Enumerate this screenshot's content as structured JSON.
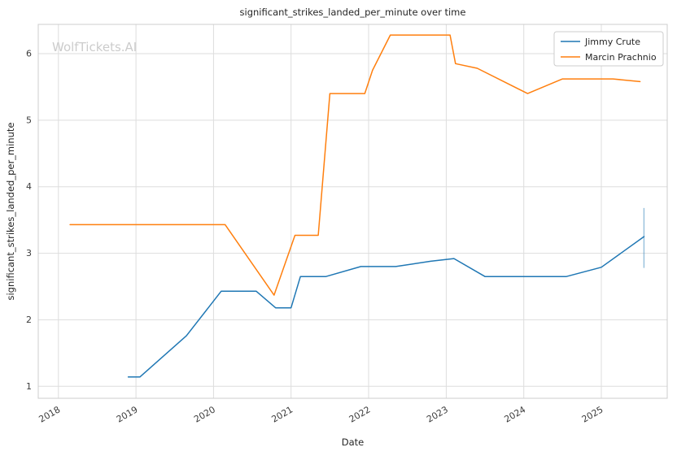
{
  "watermark": "WolfTickets.AI",
  "chart_data": {
    "type": "line",
    "title": "significant_strikes_landed_per_minute over time",
    "xlabel": "Date",
    "ylabel": "significant_strikes_landed_per_minute",
    "xlim": [
      2017.74,
      2025.85
    ],
    "ylim": [
      0.82,
      6.44
    ],
    "x_ticks": [
      2018,
      2019,
      2020,
      2021,
      2022,
      2023,
      2024,
      2025
    ],
    "y_ticks": [
      1,
      2,
      3,
      4,
      5,
      6
    ],
    "grid": true,
    "legend": {
      "position": "upper right",
      "entries": [
        "Jimmy Crute",
        "Marcin Prachnio"
      ]
    },
    "series": [
      {
        "name": "Jimmy Crute",
        "color": "#1f77b4",
        "points": [
          [
            2018.9,
            1.14
          ],
          [
            2019.05,
            1.14
          ],
          [
            2019.65,
            1.76
          ],
          [
            2020.1,
            2.43
          ],
          [
            2020.55,
            2.43
          ],
          [
            2020.8,
            2.18
          ],
          [
            2021.0,
            2.18
          ],
          [
            2021.12,
            2.65
          ],
          [
            2021.45,
            2.65
          ],
          [
            2021.9,
            2.8
          ],
          [
            2022.35,
            2.8
          ],
          [
            2022.8,
            2.88
          ],
          [
            2023.1,
            2.92
          ],
          [
            2023.5,
            2.65
          ],
          [
            2024.1,
            2.65
          ],
          [
            2024.55,
            2.65
          ],
          [
            2025.0,
            2.79
          ],
          [
            2025.55,
            3.25
          ]
        ]
      },
      {
        "name": "Marcin Prachnio",
        "color": "#ff7f0e",
        "points": [
          [
            2018.15,
            3.43
          ],
          [
            2019.0,
            3.43
          ],
          [
            2020.15,
            3.43
          ],
          [
            2020.78,
            2.37
          ],
          [
            2021.05,
            3.27
          ],
          [
            2021.35,
            3.27
          ],
          [
            2021.5,
            5.4
          ],
          [
            2021.95,
            5.4
          ],
          [
            2022.05,
            5.75
          ],
          [
            2022.28,
            6.28
          ],
          [
            2023.05,
            6.28
          ],
          [
            2023.12,
            5.85
          ],
          [
            2023.4,
            5.78
          ],
          [
            2024.05,
            5.4
          ],
          [
            2024.5,
            5.62
          ],
          [
            2025.15,
            5.62
          ],
          [
            2025.5,
            5.58
          ]
        ]
      }
    ],
    "error_bars": [
      {
        "series": "Jimmy Crute",
        "x": 2025.55,
        "y_low": 2.78,
        "y_high": 3.68
      }
    ]
  }
}
